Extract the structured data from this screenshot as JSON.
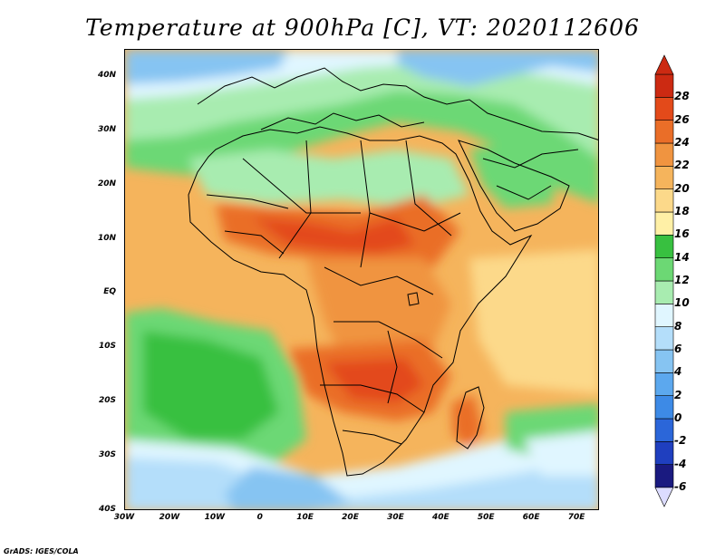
{
  "title": "Temperature at 900hPa [C], VT: 2020112606",
  "credit": "GrADS: IGES/COLA",
  "chart_data": {
    "type": "heatmap",
    "variable": "Temperature",
    "level": "900hPa",
    "units": "C",
    "valid_time": "2020112606",
    "lat_range": [
      -40,
      45
    ],
    "lon_range": [
      -30,
      75
    ],
    "lat_ticks": [
      "40N",
      "30N",
      "20N",
      "10N",
      "EQ",
      "10S",
      "20S",
      "30S",
      "40S"
    ],
    "lat_tick_values": [
      40,
      30,
      20,
      10,
      0,
      -10,
      -20,
      -30,
      -40
    ],
    "lon_ticks": [
      "30W",
      "20W",
      "10W",
      "0",
      "10E",
      "20E",
      "30E",
      "40E",
      "50E",
      "60E",
      "70E"
    ],
    "lon_tick_values": [
      -30,
      -20,
      -10,
      0,
      10,
      20,
      30,
      40,
      50,
      60,
      70
    ],
    "colorbar": {
      "levels": [
        -6,
        -4,
        -2,
        0,
        2,
        4,
        6,
        8,
        10,
        12,
        14,
        16,
        18,
        20,
        22,
        24,
        26,
        28
      ],
      "labels": [
        "28",
        "26",
        "24",
        "22",
        "20",
        "18",
        "16",
        "14",
        "12",
        "10",
        "8",
        "6",
        "4",
        "2",
        "0",
        "-2",
        "-4",
        "-6"
      ],
      "colors": [
        "#1a1a80",
        "#1f3fbf",
        "#2b66d9",
        "#3d8ae6",
        "#5ca8ee",
        "#86c4f2",
        "#b4defa",
        "#e0f6ff",
        "#a8ecb0",
        "#6cd874",
        "#38c040",
        "#fff0a6",
        "#fcd98a",
        "#f5b45c",
        "#f09440",
        "#ea6e28",
        "#e34a1a",
        "#cc2a12"
      ],
      "under_color": "#dcdcff",
      "over_color": "#cc2a12"
    }
  }
}
